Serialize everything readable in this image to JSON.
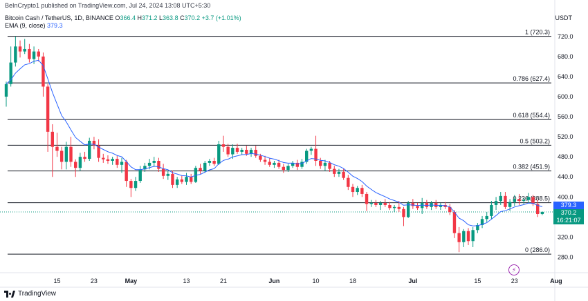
{
  "header": {
    "publisher_line": "BeInCrypto1 published on TradingView.com, Jul 24, 2024 13:08 UTC+5:30",
    "symbol": "Bitcoin Cash / TetherUS, 1D, BINANCE",
    "open_label": "O",
    "open": "366.4",
    "high_label": "H",
    "high": "371.2",
    "low_label": "L",
    "low": "363.8",
    "close_label": "C",
    "close": "370.2",
    "change": "+3.7 (+1.01%)",
    "ema_label": "EMA (9, close)",
    "ema_value": "379.3",
    "currency": "USDT"
  },
  "price_tags": {
    "ema": "379.3",
    "price": "370.2",
    "countdown": "16:21:07"
  },
  "footer": {
    "logo_text": "TradingView"
  },
  "colors": {
    "up": "#089981",
    "down": "#f23645",
    "ema": "#2962ff",
    "fib": "#131722"
  },
  "chart_data": {
    "type": "candlestick",
    "ylim": [
      260,
      742
    ],
    "y_ticks": [
      280,
      320,
      360,
      400,
      440,
      480,
      520,
      560,
      600,
      640,
      680,
      720
    ],
    "y_tick_labels": [
      "280.0",
      "320.0",
      "360.0",
      "400.0",
      "440.0",
      "480.0",
      "520.0",
      "560.0",
      "600.0",
      "640.0",
      "680.0",
      "720.0"
    ],
    "x_tick_labels": [
      "15",
      "23",
      "May",
      "13",
      "21",
      "Jun",
      "10",
      "18",
      "Jul",
      "15",
      "23",
      "Aug"
    ],
    "x_tick_dates": [
      "2024-04-15",
      "2024-04-23",
      "2024-05-01",
      "2024-05-13",
      "2024-05-21",
      "2024-06-01",
      "2024-06-10",
      "2024-06-18",
      "2024-07-01",
      "2024-07-15",
      "2024-07-23",
      "2024-08-01"
    ],
    "fib_levels": [
      {
        "label": "1 (720.3)",
        "value": 720.3
      },
      {
        "label": "0.786 (627.4)",
        "value": 627.4
      },
      {
        "label": "0.618 (554.4)",
        "value": 554.4
      },
      {
        "label": "0.5 (503.2)",
        "value": 503.2
      },
      {
        "label": "0.382 (451.9)",
        "value": 451.9
      },
      {
        "label": "0.236 (388.5)",
        "value": 388.5
      },
      {
        "label": "0 (286.0)",
        "value": 286.0
      }
    ],
    "current_price": 370.2,
    "candles": [
      {
        "d": "2024-04-04",
        "o": 600,
        "h": 630,
        "l": 580,
        "c": 625
      },
      {
        "d": "2024-04-05",
        "o": 625,
        "h": 700,
        "l": 620,
        "c": 668
      },
      {
        "d": "2024-04-06",
        "o": 668,
        "h": 720,
        "l": 660,
        "c": 700
      },
      {
        "d": "2024-04-07",
        "o": 700,
        "h": 712,
        "l": 678,
        "c": 690
      },
      {
        "d": "2024-04-08",
        "o": 690,
        "h": 715,
        "l": 685,
        "c": 695
      },
      {
        "d": "2024-04-09",
        "o": 695,
        "h": 705,
        "l": 668,
        "c": 675
      },
      {
        "d": "2024-04-10",
        "o": 675,
        "h": 700,
        "l": 665,
        "c": 690
      },
      {
        "d": "2024-04-11",
        "o": 690,
        "h": 695,
        "l": 670,
        "c": 680
      },
      {
        "d": "2024-04-12",
        "o": 680,
        "h": 688,
        "l": 600,
        "c": 620
      },
      {
        "d": "2024-04-13",
        "o": 620,
        "h": 625,
        "l": 490,
        "c": 530
      },
      {
        "d": "2024-04-14",
        "o": 530,
        "h": 545,
        "l": 440,
        "c": 500
      },
      {
        "d": "2024-04-15",
        "o": 500,
        "h": 528,
        "l": 480,
        "c": 492
      },
      {
        "d": "2024-04-16",
        "o": 492,
        "h": 500,
        "l": 455,
        "c": 470
      },
      {
        "d": "2024-04-17",
        "o": 470,
        "h": 510,
        "l": 455,
        "c": 500
      },
      {
        "d": "2024-04-18",
        "o": 500,
        "h": 520,
        "l": 460,
        "c": 470
      },
      {
        "d": "2024-04-19",
        "o": 470,
        "h": 475,
        "l": 440,
        "c": 458
      },
      {
        "d": "2024-04-20",
        "o": 458,
        "h": 488,
        "l": 452,
        "c": 480
      },
      {
        "d": "2024-04-21",
        "o": 480,
        "h": 490,
        "l": 470,
        "c": 476
      },
      {
        "d": "2024-04-22",
        "o": 476,
        "h": 518,
        "l": 472,
        "c": 512
      },
      {
        "d": "2024-04-23",
        "o": 512,
        "h": 520,
        "l": 495,
        "c": 503
      },
      {
        "d": "2024-04-24",
        "o": 503,
        "h": 515,
        "l": 470,
        "c": 478
      },
      {
        "d": "2024-04-25",
        "o": 478,
        "h": 486,
        "l": 468,
        "c": 475
      },
      {
        "d": "2024-04-26",
        "o": 475,
        "h": 483,
        "l": 466,
        "c": 472
      },
      {
        "d": "2024-04-27",
        "o": 472,
        "h": 480,
        "l": 464,
        "c": 476
      },
      {
        "d": "2024-04-28",
        "o": 476,
        "h": 482,
        "l": 458,
        "c": 464
      },
      {
        "d": "2024-04-29",
        "o": 464,
        "h": 478,
        "l": 448,
        "c": 470
      },
      {
        "d": "2024-04-30",
        "o": 470,
        "h": 474,
        "l": 420,
        "c": 432
      },
      {
        "d": "2024-05-01",
        "o": 432,
        "h": 436,
        "l": 400,
        "c": 418
      },
      {
        "d": "2024-05-02",
        "o": 418,
        "h": 440,
        "l": 412,
        "c": 432
      },
      {
        "d": "2024-05-03",
        "o": 432,
        "h": 462,
        "l": 428,
        "c": 455
      },
      {
        "d": "2024-05-04",
        "o": 455,
        "h": 468,
        "l": 450,
        "c": 462
      },
      {
        "d": "2024-05-05",
        "o": 462,
        "h": 476,
        "l": 455,
        "c": 468
      },
      {
        "d": "2024-05-06",
        "o": 468,
        "h": 480,
        "l": 460,
        "c": 472
      },
      {
        "d": "2024-05-07",
        "o": 472,
        "h": 478,
        "l": 450,
        "c": 456
      },
      {
        "d": "2024-05-08",
        "o": 456,
        "h": 466,
        "l": 436,
        "c": 442
      },
      {
        "d": "2024-05-09",
        "o": 442,
        "h": 452,
        "l": 434,
        "c": 446
      },
      {
        "d": "2024-05-10",
        "o": 446,
        "h": 452,
        "l": 418,
        "c": 424
      },
      {
        "d": "2024-05-11",
        "o": 424,
        "h": 440,
        "l": 418,
        "c": 435
      },
      {
        "d": "2024-05-12",
        "o": 435,
        "h": 442,
        "l": 426,
        "c": 430
      },
      {
        "d": "2024-05-13",
        "o": 430,
        "h": 448,
        "l": 424,
        "c": 440
      },
      {
        "d": "2024-05-14",
        "o": 440,
        "h": 446,
        "l": 426,
        "c": 430
      },
      {
        "d": "2024-05-15",
        "o": 430,
        "h": 462,
        "l": 428,
        "c": 458
      },
      {
        "d": "2024-05-16",
        "o": 458,
        "h": 466,
        "l": 446,
        "c": 452
      },
      {
        "d": "2024-05-17",
        "o": 452,
        "h": 472,
        "l": 448,
        "c": 468
      },
      {
        "d": "2024-05-18",
        "o": 468,
        "h": 476,
        "l": 462,
        "c": 472
      },
      {
        "d": "2024-05-19",
        "o": 472,
        "h": 478,
        "l": 462,
        "c": 466
      },
      {
        "d": "2024-05-20",
        "o": 466,
        "h": 512,
        "l": 464,
        "c": 505
      },
      {
        "d": "2024-05-21",
        "o": 505,
        "h": 522,
        "l": 490,
        "c": 500
      },
      {
        "d": "2024-05-22",
        "o": 500,
        "h": 506,
        "l": 480,
        "c": 485
      },
      {
        "d": "2024-05-23",
        "o": 485,
        "h": 505,
        "l": 476,
        "c": 498
      },
      {
        "d": "2024-05-24",
        "o": 498,
        "h": 506,
        "l": 486,
        "c": 490
      },
      {
        "d": "2024-05-25",
        "o": 490,
        "h": 498,
        "l": 484,
        "c": 494
      },
      {
        "d": "2024-05-26",
        "o": 494,
        "h": 502,
        "l": 482,
        "c": 486
      },
      {
        "d": "2024-05-27",
        "o": 486,
        "h": 498,
        "l": 480,
        "c": 494
      },
      {
        "d": "2024-05-28",
        "o": 494,
        "h": 502,
        "l": 478,
        "c": 482
      },
      {
        "d": "2024-05-29",
        "o": 482,
        "h": 486,
        "l": 470,
        "c": 474
      },
      {
        "d": "2024-05-30",
        "o": 474,
        "h": 482,
        "l": 464,
        "c": 470
      },
      {
        "d": "2024-05-31",
        "o": 470,
        "h": 478,
        "l": 460,
        "c": 464
      },
      {
        "d": "2024-06-01",
        "o": 464,
        "h": 472,
        "l": 458,
        "c": 468
      },
      {
        "d": "2024-06-02",
        "o": 468,
        "h": 474,
        "l": 456,
        "c": 460
      },
      {
        "d": "2024-06-03",
        "o": 460,
        "h": 466,
        "l": 448,
        "c": 454
      },
      {
        "d": "2024-06-04",
        "o": 454,
        "h": 466,
        "l": 450,
        "c": 462
      },
      {
        "d": "2024-06-05",
        "o": 462,
        "h": 472,
        "l": 458,
        "c": 468
      },
      {
        "d": "2024-06-06",
        "o": 468,
        "h": 474,
        "l": 454,
        "c": 460
      },
      {
        "d": "2024-06-07",
        "o": 460,
        "h": 476,
        "l": 456,
        "c": 470
      },
      {
        "d": "2024-06-08",
        "o": 470,
        "h": 496,
        "l": 466,
        "c": 492
      },
      {
        "d": "2024-06-09",
        "o": 492,
        "h": 500,
        "l": 484,
        "c": 496
      },
      {
        "d": "2024-06-10",
        "o": 496,
        "h": 522,
        "l": 462,
        "c": 472
      },
      {
        "d": "2024-06-11",
        "o": 472,
        "h": 478,
        "l": 456,
        "c": 462
      },
      {
        "d": "2024-06-12",
        "o": 462,
        "h": 474,
        "l": 452,
        "c": 468
      },
      {
        "d": "2024-06-13",
        "o": 468,
        "h": 472,
        "l": 450,
        "c": 456
      },
      {
        "d": "2024-06-14",
        "o": 456,
        "h": 462,
        "l": 440,
        "c": 446
      },
      {
        "d": "2024-06-15",
        "o": 446,
        "h": 456,
        "l": 440,
        "c": 450
      },
      {
        "d": "2024-06-16",
        "o": 450,
        "h": 456,
        "l": 434,
        "c": 438
      },
      {
        "d": "2024-06-17",
        "o": 438,
        "h": 444,
        "l": 414,
        "c": 420
      },
      {
        "d": "2024-06-18",
        "o": 420,
        "h": 426,
        "l": 400,
        "c": 410
      },
      {
        "d": "2024-06-19",
        "o": 410,
        "h": 422,
        "l": 404,
        "c": 418
      },
      {
        "d": "2024-06-20",
        "o": 418,
        "h": 424,
        "l": 400,
        "c": 406
      },
      {
        "d": "2024-06-21",
        "o": 406,
        "h": 410,
        "l": 372,
        "c": 386
      },
      {
        "d": "2024-06-22",
        "o": 386,
        "h": 394,
        "l": 380,
        "c": 388
      },
      {
        "d": "2024-06-23",
        "o": 388,
        "h": 394,
        "l": 380,
        "c": 384
      },
      {
        "d": "2024-06-24",
        "o": 384,
        "h": 392,
        "l": 374,
        "c": 388
      },
      {
        "d": "2024-06-25",
        "o": 388,
        "h": 396,
        "l": 380,
        "c": 384
      },
      {
        "d": "2024-06-26",
        "o": 384,
        "h": 390,
        "l": 374,
        "c": 378
      },
      {
        "d": "2024-06-27",
        "o": 378,
        "h": 384,
        "l": 370,
        "c": 380
      },
      {
        "d": "2024-06-28",
        "o": 380,
        "h": 392,
        "l": 370,
        "c": 376
      },
      {
        "d": "2024-06-29",
        "o": 376,
        "h": 380,
        "l": 342,
        "c": 360
      },
      {
        "d": "2024-06-30",
        "o": 360,
        "h": 392,
        "l": 358,
        "c": 388
      },
      {
        "d": "2024-07-01",
        "o": 388,
        "h": 396,
        "l": 376,
        "c": 382
      },
      {
        "d": "2024-07-02",
        "o": 382,
        "h": 388,
        "l": 374,
        "c": 378
      },
      {
        "d": "2024-07-03",
        "o": 378,
        "h": 398,
        "l": 366,
        "c": 388
      },
      {
        "d": "2024-07-04",
        "o": 388,
        "h": 394,
        "l": 376,
        "c": 380
      },
      {
        "d": "2024-07-05",
        "o": 380,
        "h": 392,
        "l": 374,
        "c": 388
      },
      {
        "d": "2024-07-06",
        "o": 388,
        "h": 394,
        "l": 376,
        "c": 380
      },
      {
        "d": "2024-07-07",
        "o": 380,
        "h": 388,
        "l": 374,
        "c": 384
      },
      {
        "d": "2024-07-08",
        "o": 384,
        "h": 390,
        "l": 376,
        "c": 380
      },
      {
        "d": "2024-07-09",
        "o": 380,
        "h": 386,
        "l": 364,
        "c": 370
      },
      {
        "d": "2024-07-10",
        "o": 370,
        "h": 374,
        "l": 318,
        "c": 328
      },
      {
        "d": "2024-07-11",
        "o": 328,
        "h": 340,
        "l": 290,
        "c": 310
      },
      {
        "d": "2024-07-12",
        "o": 310,
        "h": 336,
        "l": 300,
        "c": 332
      },
      {
        "d": "2024-07-13",
        "o": 332,
        "h": 338,
        "l": 304,
        "c": 312
      },
      {
        "d": "2024-07-14",
        "o": 312,
        "h": 340,
        "l": 300,
        "c": 334
      },
      {
        "d": "2024-07-15",
        "o": 334,
        "h": 348,
        "l": 328,
        "c": 344
      },
      {
        "d": "2024-07-16",
        "o": 344,
        "h": 362,
        "l": 338,
        "c": 356
      },
      {
        "d": "2024-07-17",
        "o": 356,
        "h": 370,
        "l": 350,
        "c": 362
      },
      {
        "d": "2024-07-18",
        "o": 362,
        "h": 392,
        "l": 356,
        "c": 384
      },
      {
        "d": "2024-07-19",
        "o": 384,
        "h": 400,
        "l": 374,
        "c": 392
      },
      {
        "d": "2024-07-20",
        "o": 392,
        "h": 410,
        "l": 384,
        "c": 402
      },
      {
        "d": "2024-07-21",
        "o": 402,
        "h": 410,
        "l": 376,
        "c": 380
      },
      {
        "d": "2024-07-22",
        "o": 380,
        "h": 396,
        "l": 372,
        "c": 390
      },
      {
        "d": "2024-07-23",
        "o": 390,
        "h": 404,
        "l": 382,
        "c": 396
      },
      {
        "d": "2024-07-24",
        "o": 396,
        "h": 406,
        "l": 384,
        "c": 392
      },
      {
        "d": "2024-07-25",
        "o": 392,
        "h": 398,
        "l": 386,
        "c": 394
      },
      {
        "d": "2024-07-26",
        "o": 394,
        "h": 408,
        "l": 388,
        "c": 400
      },
      {
        "d": "2024-07-27",
        "o": 400,
        "h": 404,
        "l": 382,
        "c": 386
      },
      {
        "d": "2024-07-28",
        "o": 386,
        "h": 394,
        "l": 360,
        "c": 366
      },
      {
        "d": "2024-07-29",
        "o": 366,
        "h": 371.2,
        "l": 363.8,
        "c": 370.2
      }
    ]
  }
}
